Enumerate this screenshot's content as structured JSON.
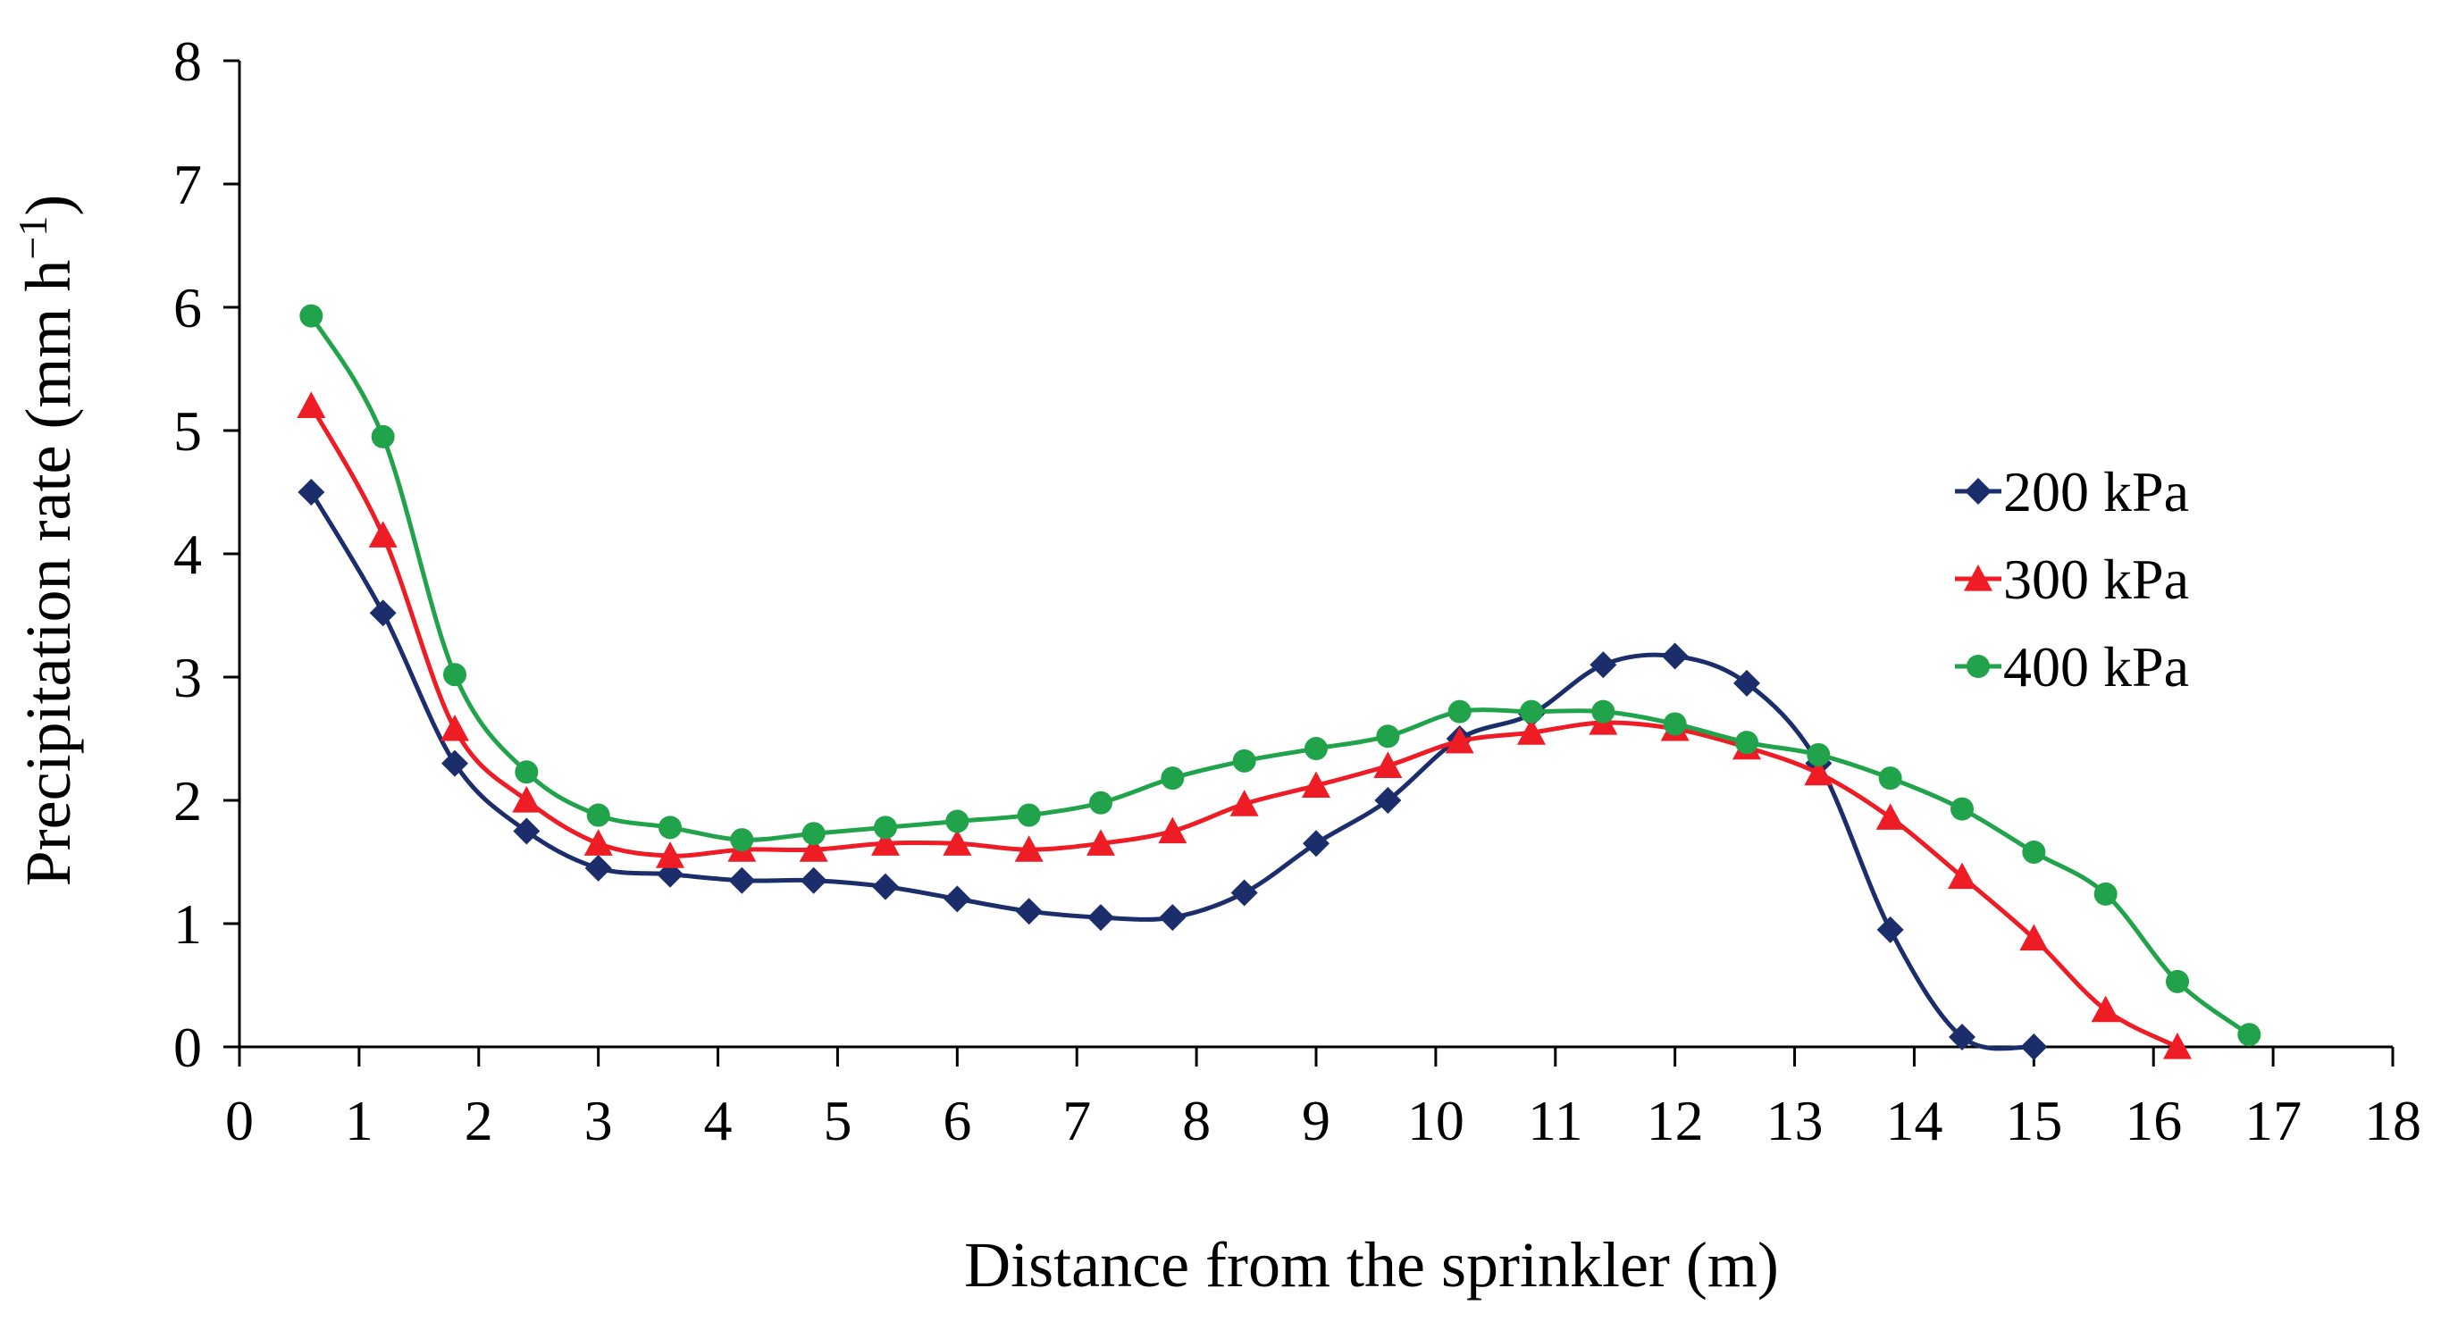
{
  "chart_data": {
    "type": "line",
    "title": "",
    "xlabel": "Distance from the sprinkler (m)",
    "ylabel_main": "Precipitation rate (mm h",
    "ylabel_sup": "−1",
    "ylabel_close": ")",
    "xlim": [
      0,
      18
    ],
    "ylim": [
      0,
      8
    ],
    "xticks": [
      0,
      1,
      2,
      3,
      4,
      5,
      6,
      7,
      8,
      9,
      10,
      11,
      12,
      13,
      14,
      15,
      16,
      17,
      18
    ],
    "yticks": [
      0,
      1,
      2,
      3,
      4,
      5,
      6,
      7,
      8
    ],
    "grid": false,
    "legend_position": "right",
    "series": [
      {
        "name": "200 kPa",
        "color": "#1b2d6b",
        "marker": "diamond",
        "x": [
          0.6,
          1.2,
          1.8,
          2.4,
          3.0,
          3.6,
          4.2,
          4.8,
          5.4,
          6.0,
          6.6,
          7.2,
          7.8,
          8.4,
          9.0,
          9.6,
          10.2,
          10.8,
          11.4,
          12.0,
          12.6,
          13.2,
          13.8,
          14.4,
          15.0
        ],
        "values": [
          4.5,
          3.52,
          2.3,
          1.75,
          1.45,
          1.4,
          1.35,
          1.35,
          1.3,
          1.2,
          1.1,
          1.05,
          1.05,
          1.25,
          1.65,
          2.0,
          2.5,
          2.7,
          3.1,
          3.17,
          2.95,
          2.3,
          0.95,
          0.08,
          0.0
        ]
      },
      {
        "name": "300 kPa",
        "color": "#ee1c25",
        "marker": "triangle",
        "x": [
          0.6,
          1.2,
          1.8,
          2.4,
          3.0,
          3.6,
          4.2,
          4.8,
          5.4,
          6.0,
          6.6,
          7.2,
          7.8,
          8.4,
          9.0,
          9.6,
          10.2,
          10.8,
          11.4,
          12.0,
          12.6,
          13.2,
          13.8,
          14.4,
          15.0,
          15.6,
          16.2
        ],
        "values": [
          5.2,
          4.15,
          2.58,
          2.0,
          1.65,
          1.55,
          1.6,
          1.6,
          1.65,
          1.65,
          1.6,
          1.65,
          1.75,
          1.97,
          2.12,
          2.28,
          2.48,
          2.55,
          2.63,
          2.58,
          2.43,
          2.22,
          1.86,
          1.38,
          0.88,
          0.3,
          0.0
        ]
      },
      {
        "name": "400 kPa",
        "color": "#20a34a",
        "marker": "circle",
        "x": [
          0.6,
          1.2,
          1.8,
          2.4,
          3.0,
          3.6,
          4.2,
          4.8,
          5.4,
          6.0,
          6.6,
          7.2,
          7.8,
          8.4,
          9.0,
          9.6,
          10.2,
          10.8,
          11.4,
          12.0,
          12.6,
          13.2,
          13.8,
          14.4,
          15.0,
          15.6,
          16.2,
          16.8
        ],
        "values": [
          5.93,
          4.95,
          3.02,
          2.23,
          1.88,
          1.78,
          1.68,
          1.73,
          1.78,
          1.83,
          1.88,
          1.98,
          2.18,
          2.32,
          2.42,
          2.52,
          2.72,
          2.72,
          2.72,
          2.62,
          2.47,
          2.37,
          2.18,
          1.93,
          1.58,
          1.24,
          0.53,
          0.1
        ]
      }
    ]
  }
}
